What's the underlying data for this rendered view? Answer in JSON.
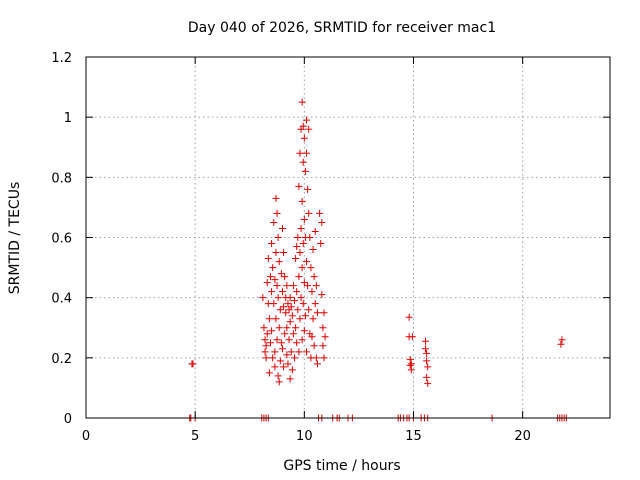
{
  "chart_data": {
    "type": "scatter",
    "title": "Day 040 of 2026, SRMTID for receiver mac1",
    "xlabel": "GPS time / hours",
    "ylabel": "SRMTID / TECUs",
    "xlim": [
      0,
      24
    ],
    "ylim": [
      0,
      1.2
    ],
    "xticks": [
      0,
      5,
      10,
      15,
      20
    ],
    "yticks": [
      0,
      0.2,
      0.4,
      0.6,
      0.8,
      1,
      1.2
    ],
    "xtick_labels": [
      "0",
      "5",
      "10",
      "15",
      "20"
    ],
    "ytick_labels": [
      "0",
      "0.2",
      "0.4",
      "0.6",
      "0.8",
      "1",
      "1.2"
    ],
    "grid": true,
    "legend": "none",
    "marker": "plus",
    "color": "#e00000",
    "series": [
      {
        "points": [
          [
            4.75,
            0
          ],
          [
            4.8,
            0
          ],
          [
            4.85,
            0.18
          ],
          [
            4.9,
            0.18
          ],
          [
            5.0,
            0
          ],
          [
            8.05,
            0
          ],
          [
            8.15,
            0
          ],
          [
            8.25,
            0
          ],
          [
            8.35,
            0
          ],
          [
            8.1,
            0.4
          ],
          [
            8.15,
            0.3
          ],
          [
            8.2,
            0.26
          ],
          [
            8.2,
            0.22
          ],
          [
            8.25,
            0.24
          ],
          [
            8.25,
            0.2
          ],
          [
            8.3,
            0.28
          ],
          [
            8.3,
            0.45
          ],
          [
            8.35,
            0.53
          ],
          [
            8.35,
            0.38
          ],
          [
            8.4,
            0.33
          ],
          [
            8.4,
            0.15
          ],
          [
            8.45,
            0.47
          ],
          [
            8.45,
            0.25
          ],
          [
            8.5,
            0.58
          ],
          [
            8.5,
            0.42
          ],
          [
            8.5,
            0.29
          ],
          [
            8.55,
            0.5
          ],
          [
            8.55,
            0.2
          ],
          [
            8.6,
            0.65
          ],
          [
            8.6,
            0.38
          ],
          [
            8.65,
            0.46
          ],
          [
            8.65,
            0.22
          ],
          [
            8.65,
            0.17
          ],
          [
            8.7,
            0.73
          ],
          [
            8.7,
            0.55
          ],
          [
            8.7,
            0.33
          ],
          [
            8.75,
            0.68
          ],
          [
            8.75,
            0.44
          ],
          [
            8.75,
            0.26
          ],
          [
            8.8,
            0.6
          ],
          [
            8.8,
            0.4
          ],
          [
            8.8,
            0.14
          ],
          [
            8.85,
            0.52
          ],
          [
            8.85,
            0.3
          ],
          [
            8.85,
            0.12
          ],
          [
            8.9,
            0.36
          ],
          [
            8.9,
            0.19
          ],
          [
            8.95,
            0.48
          ],
          [
            8.95,
            0.25
          ],
          [
            9.0,
            0.63
          ],
          [
            9.0,
            0.42
          ],
          [
            9.0,
            0.23
          ],
          [
            9.05,
            0.55
          ],
          [
            9.05,
            0.37
          ],
          [
            9.05,
            0.17
          ],
          [
            9.1,
            0.47
          ],
          [
            9.1,
            0.28
          ],
          [
            9.15,
            0.4
          ],
          [
            9.15,
            0.35
          ],
          [
            9.2,
            0.44
          ],
          [
            9.2,
            0.3
          ],
          [
            9.2,
            0.21
          ],
          [
            9.25,
            0.38
          ],
          [
            9.25,
            0.18
          ],
          [
            9.3,
            0.36
          ],
          [
            9.3,
            0.26
          ],
          [
            9.35,
            0.4
          ],
          [
            9.35,
            0.32
          ],
          [
            9.35,
            0.13
          ],
          [
            9.4,
            0.37
          ],
          [
            9.4,
            0.22
          ],
          [
            9.45,
            0.34
          ],
          [
            9.45,
            0.16
          ],
          [
            9.5,
            0.44
          ],
          [
            9.5,
            0.28
          ],
          [
            9.55,
            0.39
          ],
          [
            9.55,
            0.2
          ],
          [
            9.6,
            0.53
          ],
          [
            9.6,
            0.3
          ],
          [
            9.65,
            0.57
          ],
          [
            9.65,
            0.42
          ],
          [
            9.65,
            0.25
          ],
          [
            9.7,
            0.6
          ],
          [
            9.7,
            0.36
          ],
          [
            9.75,
            0.77
          ],
          [
            9.75,
            0.47
          ],
          [
            9.75,
            0.22
          ],
          [
            9.8,
            0.88
          ],
          [
            9.8,
            0.55
          ],
          [
            9.8,
            0.33
          ],
          [
            9.85,
            0.96
          ],
          [
            9.85,
            0.63
          ],
          [
            9.85,
            0.4
          ],
          [
            9.9,
            1.05
          ],
          [
            9.9,
            0.72
          ],
          [
            9.9,
            0.5
          ],
          [
            9.9,
            0.26
          ],
          [
            9.95,
            0.97
          ],
          [
            9.95,
            0.85
          ],
          [
            9.95,
            0.58
          ],
          [
            9.95,
            0.38
          ],
          [
            10.0,
            0.93
          ],
          [
            10.0,
            0.66
          ],
          [
            10.0,
            0.45
          ],
          [
            10.0,
            0.29
          ],
          [
            10.05,
            0.82
          ],
          [
            10.05,
            0.6
          ],
          [
            10.05,
            0.34
          ],
          [
            10.1,
            0.99
          ],
          [
            10.1,
            0.88
          ],
          [
            10.1,
            0.52
          ],
          [
            10.1,
            0.22
          ],
          [
            10.15,
            0.76
          ],
          [
            10.15,
            0.44
          ],
          [
            10.2,
            0.96
          ],
          [
            10.2,
            0.68
          ],
          [
            10.2,
            0.36
          ],
          [
            10.25,
            0.6
          ],
          [
            10.25,
            0.28
          ],
          [
            10.3,
            0.5
          ],
          [
            10.3,
            0.2
          ],
          [
            10.35,
            0.42
          ],
          [
            10.35,
            0.27
          ],
          [
            10.4,
            0.56
          ],
          [
            10.4,
            0.33
          ],
          [
            10.45,
            0.47
          ],
          [
            10.45,
            0.24
          ],
          [
            10.5,
            0.62
          ],
          [
            10.5,
            0.38
          ],
          [
            10.55,
            0.44
          ],
          [
            10.55,
            0.2
          ],
          [
            10.6,
            0.35
          ],
          [
            10.6,
            0.18
          ],
          [
            10.7,
            0.68
          ],
          [
            10.75,
            0.58
          ],
          [
            10.8,
            0.65
          ],
          [
            10.8,
            0.41
          ],
          [
            10.85,
            0.3
          ],
          [
            10.85,
            0.24
          ],
          [
            10.9,
            0.35
          ],
          [
            10.9,
            0.2
          ],
          [
            10.95,
            0.27
          ],
          [
            10.65,
            0
          ],
          [
            10.8,
            0
          ],
          [
            11.3,
            0
          ],
          [
            11.5,
            0
          ],
          [
            11.6,
            0
          ],
          [
            12.0,
            0
          ],
          [
            12.2,
            0
          ],
          [
            14.3,
            0
          ],
          [
            14.4,
            0
          ],
          [
            14.55,
            0
          ],
          [
            14.7,
            0
          ],
          [
            14.8,
            0
          ],
          [
            15.0,
            0
          ],
          [
            15.35,
            0
          ],
          [
            15.5,
            0
          ],
          [
            15.65,
            0
          ],
          [
            14.8,
            0.335
          ],
          [
            14.8,
            0.27
          ],
          [
            14.85,
            0.195
          ],
          [
            14.85,
            0.175
          ],
          [
            14.9,
            0.16
          ],
          [
            14.9,
            0.18
          ],
          [
            14.95,
            0.27
          ],
          [
            15.55,
            0.255
          ],
          [
            15.55,
            0.23
          ],
          [
            15.6,
            0.215
          ],
          [
            15.6,
            0.19
          ],
          [
            15.65,
            0.17
          ],
          [
            15.6,
            0.135
          ],
          [
            15.65,
            0.115
          ],
          [
            18.6,
            0
          ],
          [
            21.6,
            0
          ],
          [
            21.7,
            0
          ],
          [
            21.8,
            0
          ],
          [
            21.9,
            0
          ],
          [
            22.0,
            0
          ],
          [
            21.75,
            0.245
          ],
          [
            21.8,
            0.26
          ]
        ]
      }
    ]
  }
}
